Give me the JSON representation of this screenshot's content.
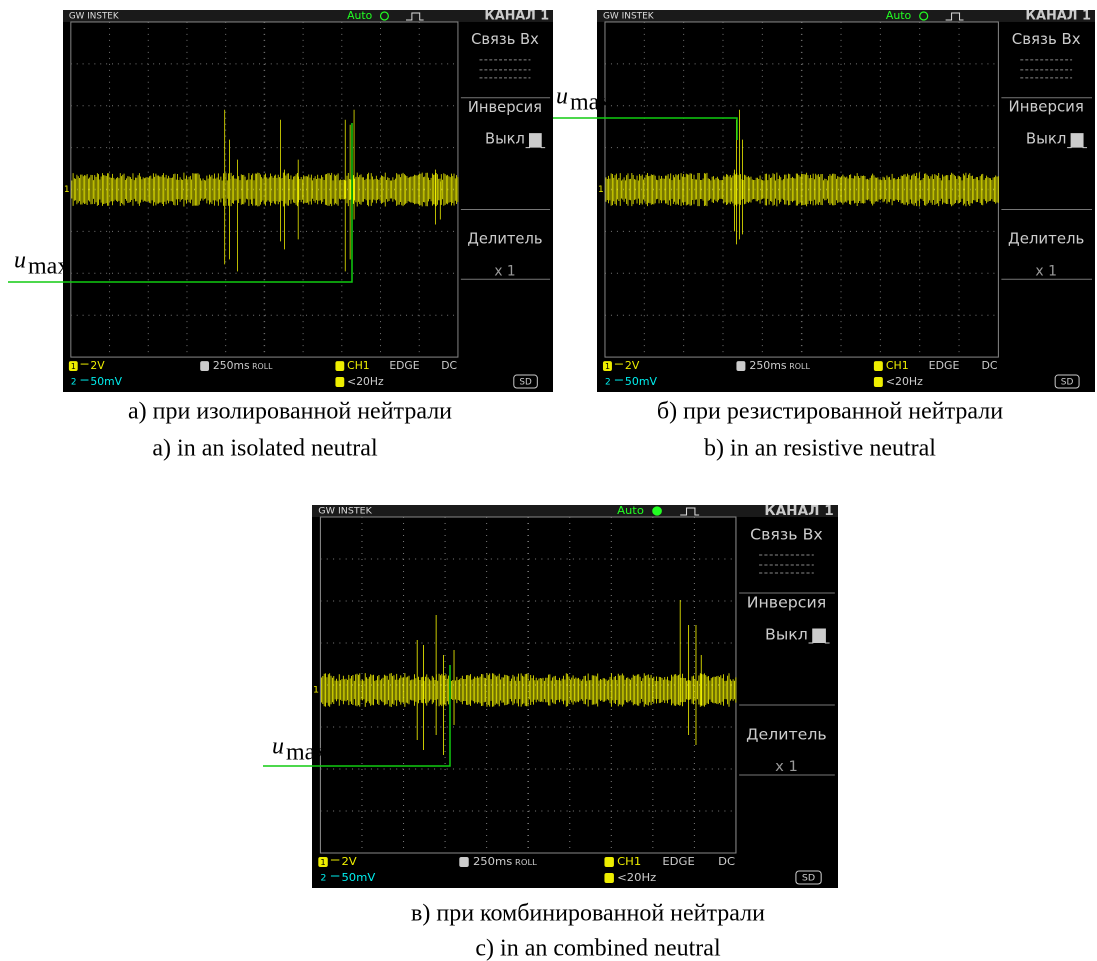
{
  "scope": {
    "brand": "GW INSTEK",
    "mode": "Auto",
    "channel": "КАНАЛ 1",
    "coupling": "Связь Вх",
    "invert": "Инверсия",
    "invert_state": "Выкл",
    "probe": "Делитель",
    "probe_value": "x 1",
    "ch1_label": "1",
    "ch2_label": "2",
    "ch1_scale": "2V",
    "ch2_scale": "50mV",
    "timebase": "250ms",
    "roll": "ROLL",
    "trig_source": "CH1",
    "trig_type": "EDGE",
    "trig_coupling": "DC",
    "trig_freq": "<20Hz",
    "storage": "SD"
  },
  "u_max": {
    "symbol": "u",
    "subscript": "max"
  },
  "panels": [
    {
      "caption_ru": "а) при изолированной нейтрали",
      "caption_en": "a) in an isolated neutral"
    },
    {
      "caption_ru": "б) при резистированной  нейтрали",
      "caption_en": "b) in an resistive neutral"
    },
    {
      "caption_ru": "в) при комбинированной нейтрали",
      "caption_en": "c) in an combined neutral"
    }
  ]
}
